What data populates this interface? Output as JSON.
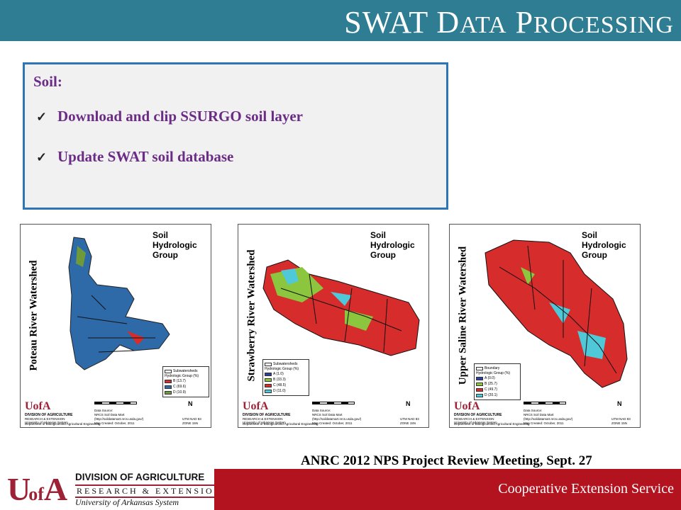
{
  "header": {
    "title_first": "SWAT",
    "title_d": "D",
    "title_ata": "ATA",
    "title_p": "P",
    "title_rocessing": "ROCESSING"
  },
  "soil_box": {
    "heading": "Soil:",
    "bullets": [
      "Download and clip SSURGO soil layer",
      "Update SWAT soil database"
    ]
  },
  "maps": [
    {
      "side_title": "Poteau River Watershed",
      "group_title": [
        "Soil",
        "Hydrologic",
        "Group"
      ],
      "legend_title": "Subwatersheds",
      "legend_heading": "Hydrologic Group (%)",
      "legend_items": [
        {
          "label": "B (13.7)",
          "color": "#d62c2c"
        },
        {
          "label": "C (69.6)",
          "color": "#2e6aa8"
        },
        {
          "label": "D (10.9)",
          "color": "#6f9a3a"
        }
      ]
    },
    {
      "side_title": "Strawberry River Watershed",
      "group_title": [
        "Soil",
        "Hydrologic",
        "Group"
      ],
      "legend_title": "Subwatersheds",
      "legend_heading": "Hydrologic Group (%)",
      "legend_items": [
        {
          "label": "A (1.0)",
          "color": "#2b3fa3"
        },
        {
          "label": "B (33.3)",
          "color": "#8cc63e"
        },
        {
          "label": "C (48.5)",
          "color": "#d62c2c"
        },
        {
          "label": "D (11.0)",
          "color": "#4fc8d8"
        }
      ]
    },
    {
      "side_title": "Upper Saline River Watershed",
      "group_title": [
        "Soil",
        "Hydrologic",
        "Group"
      ],
      "legend_title": "Boundary",
      "legend_heading": "Hydrologic Group (%)",
      "legend_items": [
        {
          "label": "A (0.0)",
          "color": "#2b3fa3"
        },
        {
          "label": "B (25.7)",
          "color": "#8cc63e"
        },
        {
          "label": "C (49.7)",
          "color": "#d62c2c"
        },
        {
          "label": "D (20.1)",
          "color": "#4fc8d8"
        }
      ]
    }
  ],
  "map_footer": {
    "logo_ua": "UofA",
    "logo_div": "DIVISION OF AGRICULTURE",
    "logo_sub": "RESEARCH & EXTENSION",
    "logo_sys": "University of Arkansas System",
    "dept": "Department of Biological and Agricultural Engineering",
    "source1": "Data Source:",
    "source2": "NRCS Soil Data Mart",
    "source3": "(http://soildatamart.nrcs.usda.gov/)",
    "source4": "Map Created: October, 2011",
    "north": "N",
    "utm1": "UTM NAD 83",
    "utm2": "ZONE 15N",
    "miles": "Miles"
  },
  "meeting_text": "ANRC 2012 NPS Project Review Meeting, Sept. 27",
  "bottom_logo": {
    "u": "U",
    "of": "of",
    "a": "A",
    "line1": "DIVISION OF AGRICULTURE",
    "line2": "RESEARCH & EXTENSION",
    "line3": "University of Arkansas System"
  },
  "bottom_bar_text": "Cooperative Extension Service",
  "colors": {
    "title_bar": "#2e7d93",
    "accent_purple": "#6b2c86",
    "box_border": "#2f74b5",
    "bottom_bar": "#b3121f",
    "logo_red": "#9d2235"
  }
}
